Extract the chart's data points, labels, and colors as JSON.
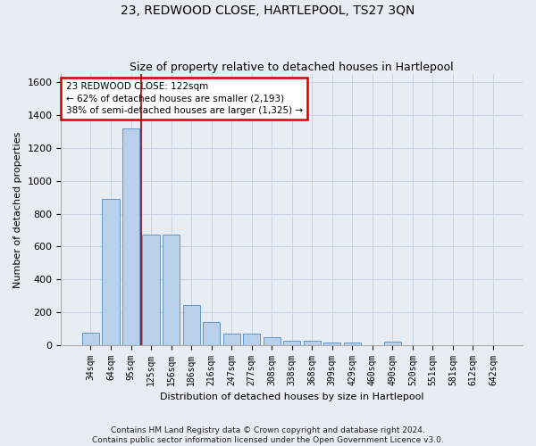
{
  "title": "23, REDWOOD CLOSE, HARTLEPOOL, TS27 3QN",
  "subtitle": "Size of property relative to detached houses in Hartlepool",
  "xlabel": "Distribution of detached houses by size in Hartlepool",
  "ylabel": "Number of detached properties",
  "footer_line1": "Contains HM Land Registry data © Crown copyright and database right 2024.",
  "footer_line2": "Contains public sector information licensed under the Open Government Licence v3.0.",
  "categories": [
    "34sqm",
    "64sqm",
    "95sqm",
    "125sqm",
    "156sqm",
    "186sqm",
    "216sqm",
    "247sqm",
    "277sqm",
    "308sqm",
    "338sqm",
    "368sqm",
    "399sqm",
    "429sqm",
    "460sqm",
    "490sqm",
    "520sqm",
    "551sqm",
    "581sqm",
    "612sqm",
    "642sqm"
  ],
  "values": [
    75,
    890,
    1320,
    670,
    670,
    245,
    140,
    70,
    70,
    45,
    25,
    25,
    15,
    15,
    0,
    20,
    0,
    0,
    0,
    0,
    0
  ],
  "bar_color": "#b8d0ea",
  "bar_edge_color": "#6096c8",
  "vline_x": 2.5,
  "vline_color": "#990000",
  "annotation_text": "23 REDWOOD CLOSE: 122sqm\n← 62% of detached houses are smaller (2,193)\n38% of semi-detached houses are larger (1,325) →",
  "annotation_box_color": "#cc0000",
  "annotation_text_color": "black",
  "annotation_box_fill": "white",
  "ylim": [
    0,
    1650
  ],
  "yticks": [
    0,
    200,
    400,
    600,
    800,
    1000,
    1200,
    1400,
    1600
  ],
  "grid_color": "#c8d4e4",
  "background_color": "#e8edf4",
  "plot_bg_color": "#e8edf4",
  "title_fontsize": 10,
  "subtitle_fontsize": 9,
  "ylabel_fontsize": 8,
  "xlabel_fontsize": 8,
  "ytick_fontsize": 8,
  "xtick_fontsize": 7,
  "annotation_fontsize": 7.5,
  "footer_fontsize": 6.5
}
